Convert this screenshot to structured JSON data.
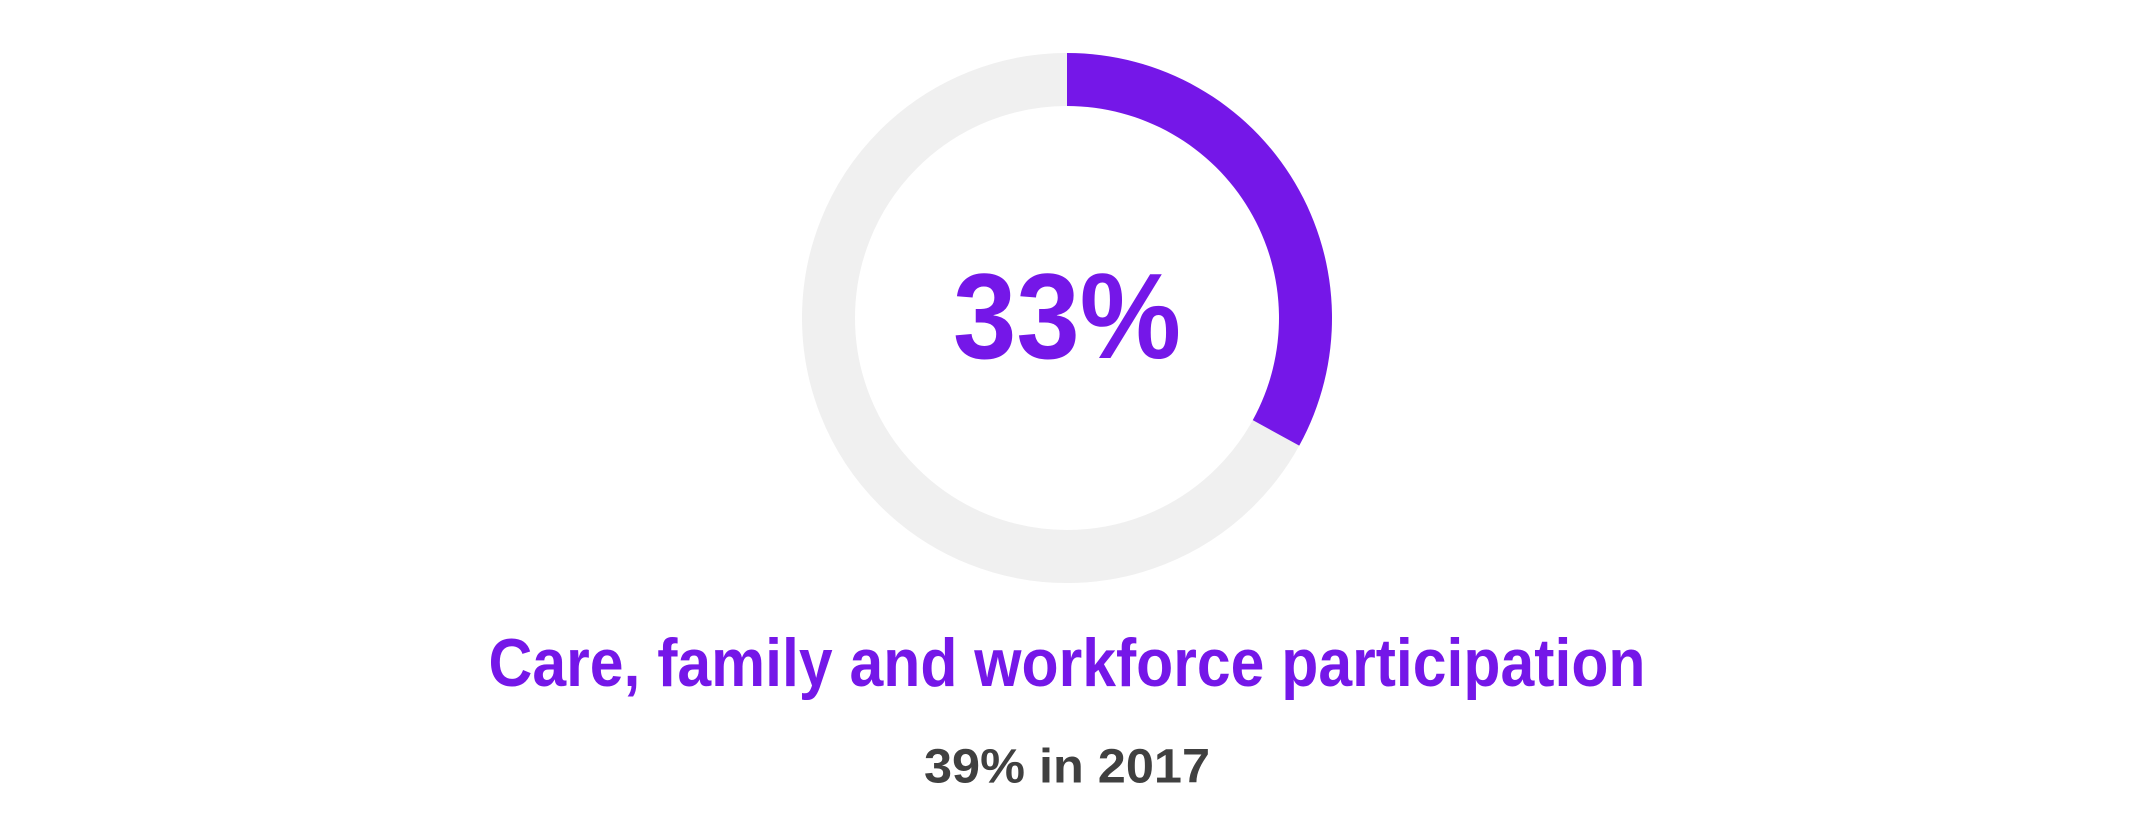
{
  "chart_data": {
    "type": "donut",
    "values": [
      33
    ],
    "value_labels": [
      "33%"
    ],
    "color": "#7517e8",
    "track_color": "#f0f0f0",
    "title": "Care, family and workforce participation",
    "subtitle": "39% in 2017"
  }
}
